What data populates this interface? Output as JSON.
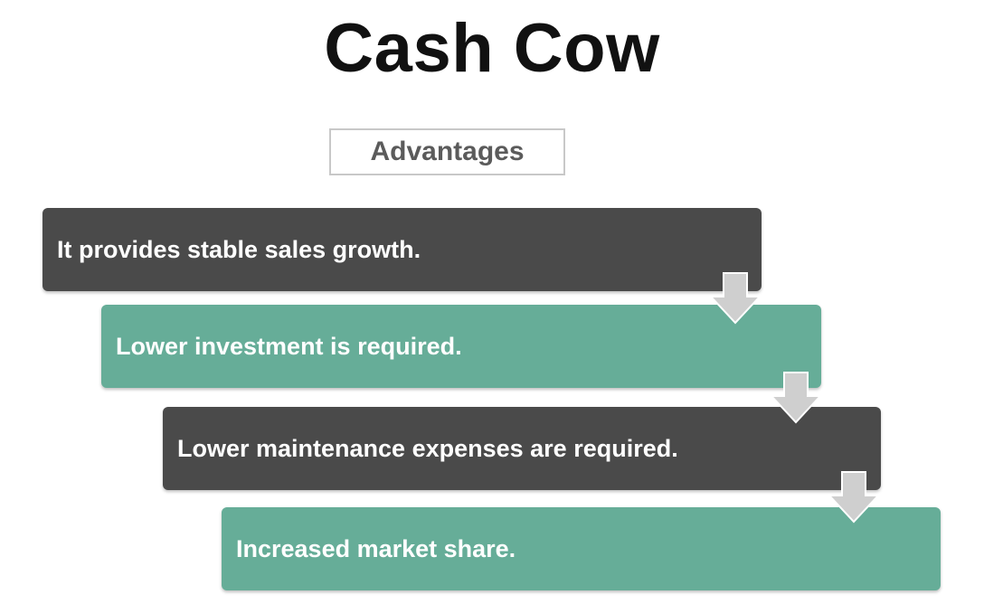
{
  "title": "Cash Cow",
  "subtitle": "Advantages",
  "steps": [
    {
      "label": "It provides stable sales growth.",
      "color": "#4a4a4a"
    },
    {
      "label": "Lower investment is required.",
      "color": "#66ad98"
    },
    {
      "label": "Lower maintenance expenses are required.",
      "color": "#4a4a4a"
    },
    {
      "label": "Increased market share.",
      "color": "#66ad98"
    }
  ],
  "connector_icon": "down-arrow-icon",
  "colors": {
    "dark": "#4a4a4a",
    "teal": "#66ad98",
    "arrow": "#cfcfcf"
  }
}
